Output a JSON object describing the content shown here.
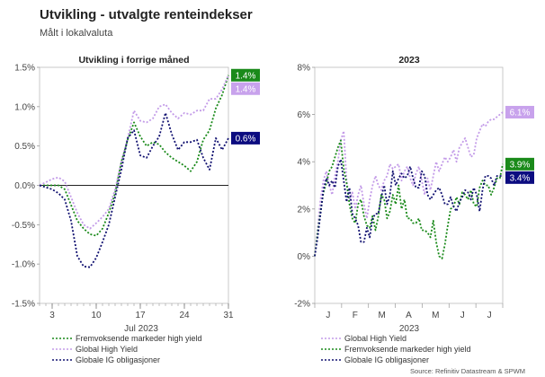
{
  "header": {
    "title": "Utvikling - utvalgte renteindekser",
    "subtitle": "Målt i lokalvaluta"
  },
  "source": "Source: Refinitiv Datastream & SPWM",
  "colors": {
    "em_hy": "#1a8a1a",
    "global_hy": "#c39be8",
    "global_ig": "#101070",
    "em_hy_label_bg": "#1a8a1a",
    "global_hy_label_bg": "#c8a2ec",
    "global_ig_label_bg": "#0c0c80"
  },
  "chart_data": [
    {
      "type": "line",
      "title": "Utvikling i forrige måned",
      "xlabel": "Jul 2023",
      "xticks": [
        3,
        10,
        17,
        24,
        31
      ],
      "xlim": [
        1,
        31
      ],
      "ytick_labels": [
        "1.5%",
        "1.0%",
        "0.5%",
        "0.0%",
        "-0.5%",
        "-1.0%",
        "-1.5%"
      ],
      "yticks": [
        1.5,
        1.0,
        0.5,
        0.0,
        -0.5,
        -1.0,
        -1.5
      ],
      "ylim": [
        -1.5,
        1.5
      ],
      "zero_line": true,
      "series": [
        {
          "key": "em_hy",
          "name": "Fremvoksende markeder high yield",
          "x": [
            1,
            3,
            4,
            5,
            6,
            7,
            8,
            9,
            10,
            11,
            12,
            13,
            14,
            15,
            16,
            17,
            18,
            19,
            20,
            21,
            22,
            23,
            24,
            25,
            26,
            27,
            28,
            29,
            30,
            31
          ],
          "values": [
            0.0,
            0.0,
            0.0,
            -0.05,
            -0.25,
            -0.45,
            -0.55,
            -0.62,
            -0.64,
            -0.55,
            -0.35,
            -0.1,
            0.3,
            0.58,
            0.8,
            0.62,
            0.5,
            0.55,
            0.52,
            0.42,
            0.35,
            0.3,
            0.25,
            0.18,
            0.3,
            0.58,
            0.7,
            0.98,
            1.15,
            1.4
          ],
          "end_label": "1.4%"
        },
        {
          "key": "global_hy",
          "name": "Global High Yield",
          "x": [
            1,
            3,
            4,
            5,
            6,
            7,
            8,
            9,
            10,
            11,
            12,
            13,
            14,
            15,
            16,
            17,
            18,
            19,
            20,
            21,
            22,
            23,
            24,
            25,
            26,
            27,
            28,
            29,
            30,
            31
          ],
          "values": [
            0.0,
            0.08,
            0.1,
            0.05,
            -0.15,
            -0.35,
            -0.5,
            -0.55,
            -0.48,
            -0.4,
            -0.3,
            -0.05,
            0.3,
            0.6,
            0.95,
            0.82,
            0.8,
            0.85,
            1.0,
            1.03,
            0.92,
            0.85,
            0.92,
            0.9,
            0.95,
            0.95,
            1.1,
            1.1,
            1.22,
            1.4
          ],
          "end_label": "1.4%"
        },
        {
          "key": "global_ig",
          "name": "Globale IG obligasjoner",
          "x": [
            1,
            3,
            4,
            5,
            6,
            7,
            8,
            9,
            10,
            11,
            12,
            13,
            14,
            15,
            16,
            17,
            18,
            19,
            20,
            21,
            22,
            23,
            24,
            25,
            26,
            27,
            28,
            29,
            30,
            31
          ],
          "values": [
            0.0,
            -0.05,
            -0.1,
            -0.18,
            -0.45,
            -0.9,
            -1.03,
            -1.04,
            -0.92,
            -0.72,
            -0.5,
            -0.15,
            0.2,
            0.6,
            0.7,
            0.38,
            0.35,
            0.5,
            0.62,
            0.92,
            0.65,
            0.45,
            0.55,
            0.55,
            0.58,
            0.35,
            0.2,
            0.6,
            0.45,
            0.6
          ],
          "end_label": "0.6%"
        }
      ]
    },
    {
      "type": "line",
      "title": "2023",
      "xlabel": "2023",
      "xticks": [
        "J",
        "F",
        "M",
        "A",
        "M",
        "J",
        "J"
      ],
      "xlim": [
        0,
        7
      ],
      "ytick_labels": [
        "8%",
        "6%",
        "4%",
        "2%",
        "0%",
        "-2%"
      ],
      "yticks": [
        8,
        6,
        4,
        2,
        0,
        -2
      ],
      "ylim": [
        -2,
        8
      ],
      "zero_line": false,
      "series": [
        {
          "key": "global_hy",
          "name": "Global High Yield",
          "values": [
            0.0,
            1.2,
            2.4,
            3.2,
            3.6,
            3.0,
            2.6,
            3.4,
            4.0,
            4.9,
            5.3,
            3.2,
            2.4,
            2.7,
            2.0,
            2.6,
            3.0,
            2.2,
            1.6,
            2.4,
            3.0,
            3.4,
            3.0,
            2.8,
            3.2,
            3.4,
            3.9,
            3.7,
            3.8,
            3.9,
            3.2,
            3.6,
            3.8,
            3.3,
            3.0,
            3.5,
            3.8,
            3.2,
            2.6,
            3.3,
            2.8,
            3.4,
            4.0,
            3.6,
            3.9,
            4.2,
            4.0,
            4.2,
            4.5,
            4.0,
            4.6,
            4.8,
            5.0,
            4.6,
            4.2,
            4.3,
            5.0,
            5.3,
            5.6,
            5.5,
            5.7,
            5.8,
            5.8,
            5.9,
            6.0,
            6.1
          ],
          "end_label": "6.1%"
        },
        {
          "key": "em_hy",
          "name": "Fremvoksende markeder high yield",
          "values": [
            0.0,
            1.0,
            1.9,
            2.7,
            3.1,
            3.6,
            3.8,
            4.2,
            4.6,
            4.9,
            3.7,
            3.1,
            2.2,
            1.6,
            1.4,
            2.2,
            2.4,
            1.7,
            1.3,
            1.2,
            1.7,
            1.1,
            1.7,
            2.6,
            2.4,
            1.6,
            1.9,
            2.6,
            2.2,
            3.0,
            2.0,
            2.4,
            1.6,
            1.6,
            1.4,
            1.4,
            1.6,
            1.1,
            1.1,
            1.0,
            0.8,
            1.5,
            0.6,
            0.0,
            -0.1,
            0.5,
            1.3,
            2.0,
            2.1,
            2.5,
            2.2,
            2.7,
            2.6,
            2.4,
            2.8,
            2.2,
            2.1,
            2.9,
            3.2,
            3.0,
            3.0,
            2.6,
            2.9,
            3.3,
            3.3,
            3.9
          ],
          "end_label": "3.9%"
        },
        {
          "key": "global_ig",
          "name": "Globale IG obligasjoner",
          "values": [
            0.0,
            0.8,
            1.8,
            2.8,
            3.3,
            3.0,
            3.2,
            2.9,
            3.8,
            4.1,
            3.2,
            2.3,
            2.9,
            1.8,
            1.6,
            1.3,
            0.6,
            0.6,
            1.2,
            0.8,
            1.6,
            1.8,
            1.8,
            2.5,
            3.0,
            2.2,
            2.6,
            3.6,
            3.0,
            3.3,
            3.5,
            3.3,
            3.4,
            3.8,
            3.3,
            2.9,
            2.9,
            3.6,
            3.4,
            2.6,
            2.4,
            2.6,
            2.8,
            2.9,
            2.6,
            2.2,
            2.2,
            2.5,
            2.1,
            1.9,
            2.3,
            2.5,
            2.8,
            2.7,
            2.4,
            2.9,
            2.6,
            1.9,
            2.8,
            3.4,
            3.4,
            3.3,
            3.0,
            3.4,
            3.4,
            3.4
          ],
          "end_label": "3.4%"
        }
      ]
    }
  ]
}
